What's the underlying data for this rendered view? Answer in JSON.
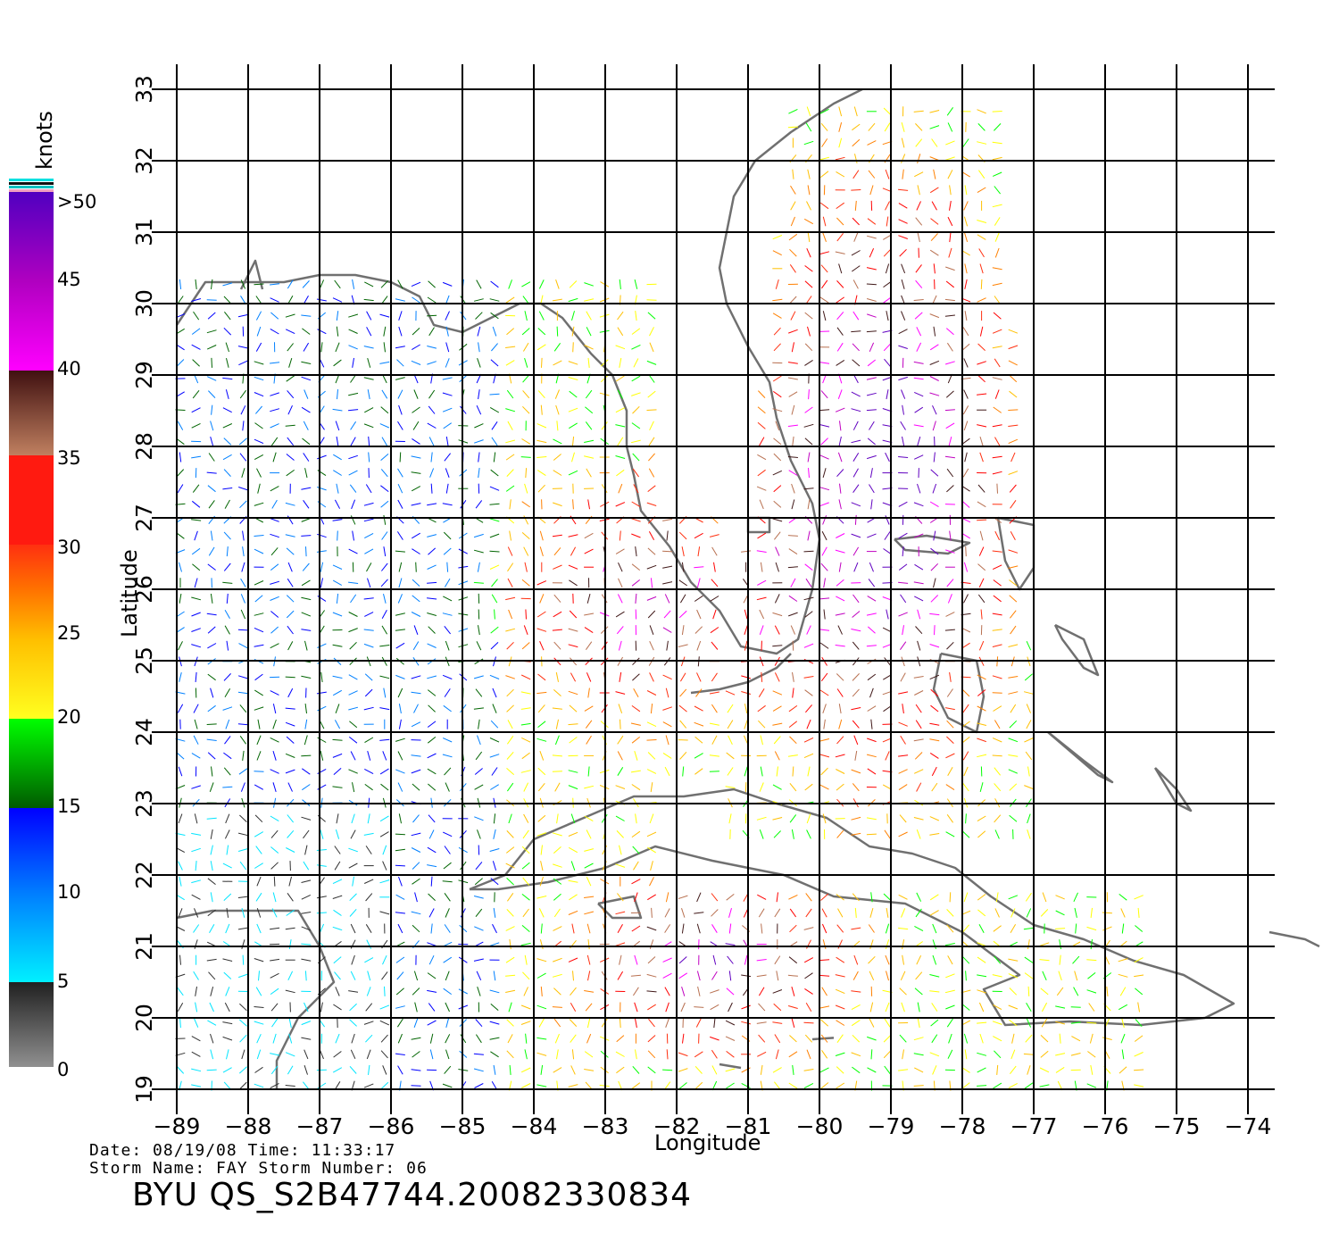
{
  "axes": {
    "xlabel": "Longitude",
    "ylabel": "Latitude",
    "lon_ticks": [
      "-89",
      "-88",
      "-87",
      "-86",
      "-85",
      "-84",
      "-83",
      "-82",
      "-81",
      "-80",
      "-79",
      "-78",
      "-77",
      "-76",
      "-75",
      "-74"
    ],
    "lat_ticks": [
      "19",
      "20",
      "21",
      "22",
      "23",
      "24",
      "25",
      "26",
      "27",
      "28",
      "29",
      "30",
      "31",
      "32",
      "33"
    ],
    "lon_range": [
      -89,
      -74
    ],
    "lat_range": [
      19,
      33
    ],
    "grid": true
  },
  "legend": {
    "unit": "knots",
    "labels": [
      ">50",
      "45",
      "40",
      "35",
      "30",
      "25",
      "20",
      "15",
      "10",
      "5",
      "0"
    ]
  },
  "footer": {
    "line1": "Date: 08/19/08   Time: 11:33:17",
    "line2": "Storm  Name: FAY   Storm  Number: 06",
    "title": "BYU  QS_S2B47744.20082330834"
  },
  "colors": {
    "coast": "#707070",
    "grid": "#000000",
    "scale": [
      "#808080",
      "#303030",
      "#00e5ff",
      "#0080ff",
      "#0000ff",
      "#006400",
      "#00ff00",
      "#ffff00",
      "#ffc000",
      "#ff8000",
      "#ff3010",
      "#ff0000",
      "#b87050",
      "#401818",
      "#ff00ff",
      "#c000c0",
      "#6000c0"
    ]
  }
}
